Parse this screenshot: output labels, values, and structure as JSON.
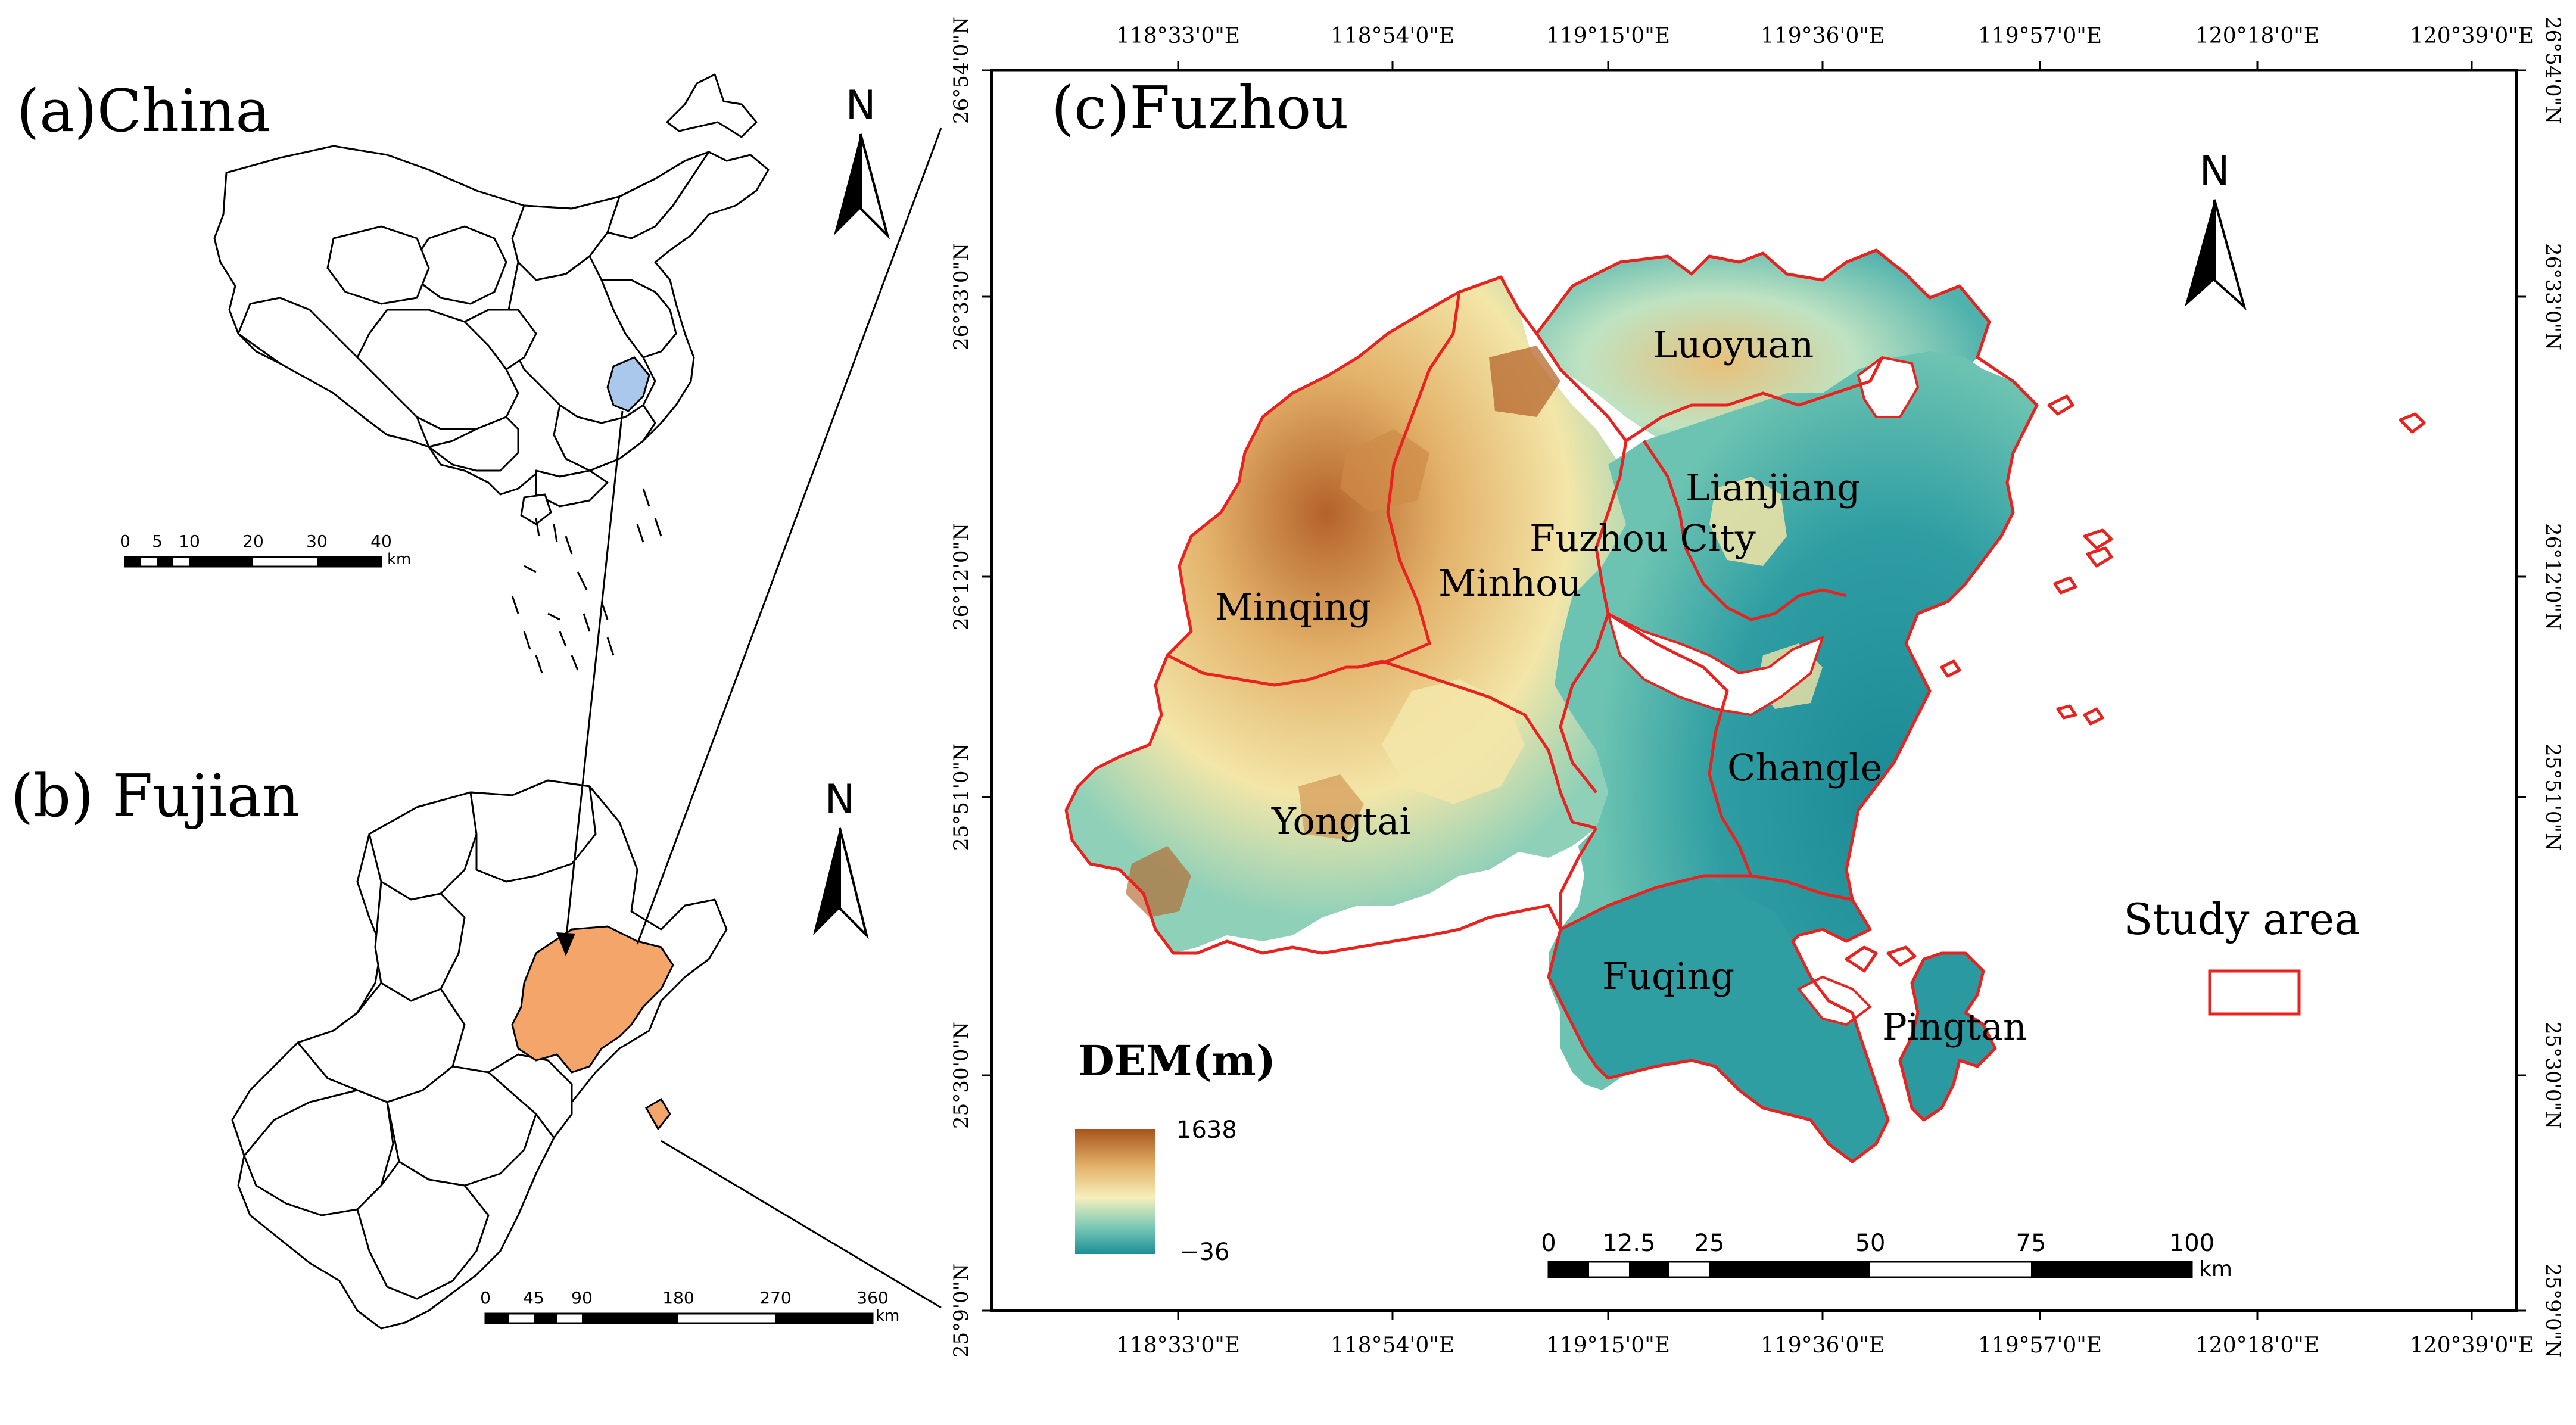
{
  "colors": {
    "background": "#ffffff",
    "outline": "#000000",
    "study_area_outline": "#e8231f",
    "china_highlight": "#a9c8ec",
    "fujian_highlight": "#f4a56a",
    "dem_high": "#a8531a",
    "dem_mid_high": "#e3b26a",
    "dem_mid": "#f6efbc",
    "dem_mid_low": "#7ccab6",
    "dem_low": "#1d8e98"
  },
  "panel_a": {
    "label": "(a)China",
    "north": "N",
    "scale": {
      "ticks": [
        "0",
        "5",
        "10",
        "20",
        "30",
        "40"
      ],
      "unit": "km"
    }
  },
  "panel_b": {
    "label": "(b) Fujian",
    "north": "N",
    "scale": {
      "ticks": [
        "0",
        "45",
        "90",
        "180",
        "270",
        "360"
      ],
      "unit": "km"
    }
  },
  "panel_c": {
    "label": "(c)Fuzhou",
    "north": "N",
    "lon_labels": [
      "118°33'0\"E",
      "118°54'0\"E",
      "119°15'0\"E",
      "119°36'0\"E",
      "119°57'0\"E",
      "120°18'0\"E",
      "120°39'0\"E"
    ],
    "lat_labels": [
      "26°54'0\"N",
      "26°33'0\"N",
      "26°12'0\"N",
      "25°51'0\"N",
      "25°30'0\"N",
      "25°9'0\"N"
    ],
    "districts": [
      "Luoyuan",
      "Lianjiang",
      "Fuzhou City",
      "Minqing",
      "Minhou",
      "Changle",
      "Yongtai",
      "Fuqing",
      "Pingtan"
    ],
    "legend": {
      "title": "DEM(m)",
      "max": "1638",
      "min": "−36",
      "study_area": "Study area"
    },
    "scale": {
      "ticks": [
        "0",
        "12.5",
        "25",
        "50",
        "75",
        "100"
      ],
      "unit": "km"
    }
  }
}
